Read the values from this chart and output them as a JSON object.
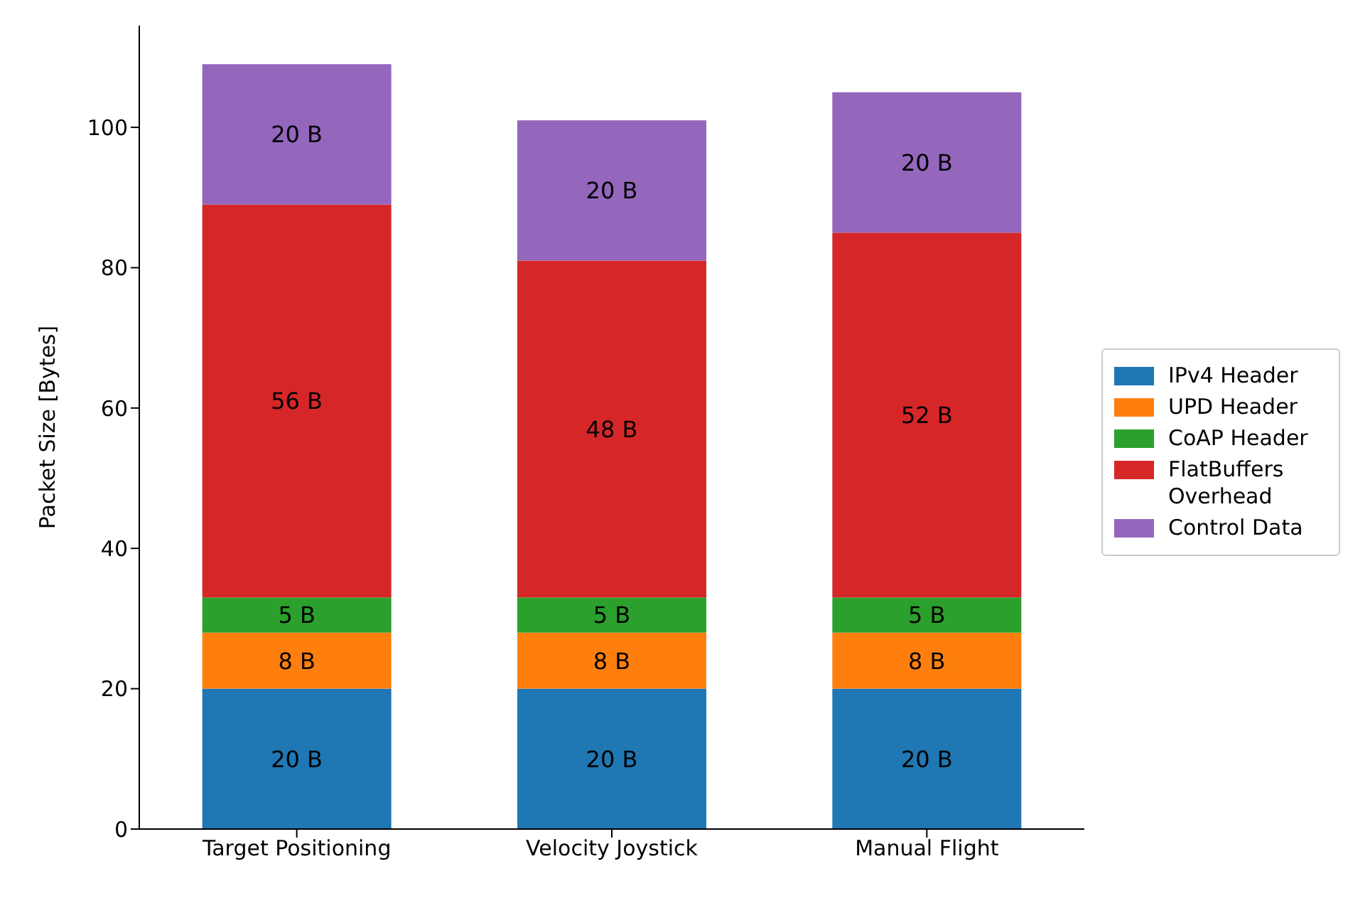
{
  "chart_data": {
    "type": "bar",
    "ylabel": "Packet Size [Bytes]",
    "categories": [
      "Target Positioning",
      "Velocity Joystick",
      "Manual Flight"
    ],
    "stacked": true,
    "series": [
      {
        "name": "IPv4 Header",
        "color": "#1f77b4",
        "values": [
          20,
          20,
          20
        ],
        "value_labels": [
          "20 B",
          "20 B",
          "20 B"
        ]
      },
      {
        "name": "UPD Header",
        "color": "#ff7f0e",
        "values": [
          8,
          8,
          8
        ],
        "value_labels": [
          "8 B",
          "8 B",
          "8 B"
        ]
      },
      {
        "name": "CoAP Header",
        "color": "#2ca02c",
        "values": [
          5,
          5,
          5
        ],
        "value_labels": [
          "5 B",
          "5 B",
          "5 B"
        ]
      },
      {
        "name": "FlatBuffers Overhead",
        "color": "#d62728",
        "values": [
          56,
          48,
          52
        ],
        "value_labels": [
          "56 B",
          "48 B",
          "52 B"
        ]
      },
      {
        "name": "Control Data",
        "color": "#9467bd",
        "values": [
          20,
          20,
          20
        ],
        "value_labels": [
          "20 B",
          "20 B",
          "20 B"
        ]
      }
    ],
    "ylim": [
      0,
      114.5
    ],
    "yticks": [
      0,
      20,
      40,
      60,
      80,
      100
    ],
    "grid": false,
    "legend": "right"
  }
}
